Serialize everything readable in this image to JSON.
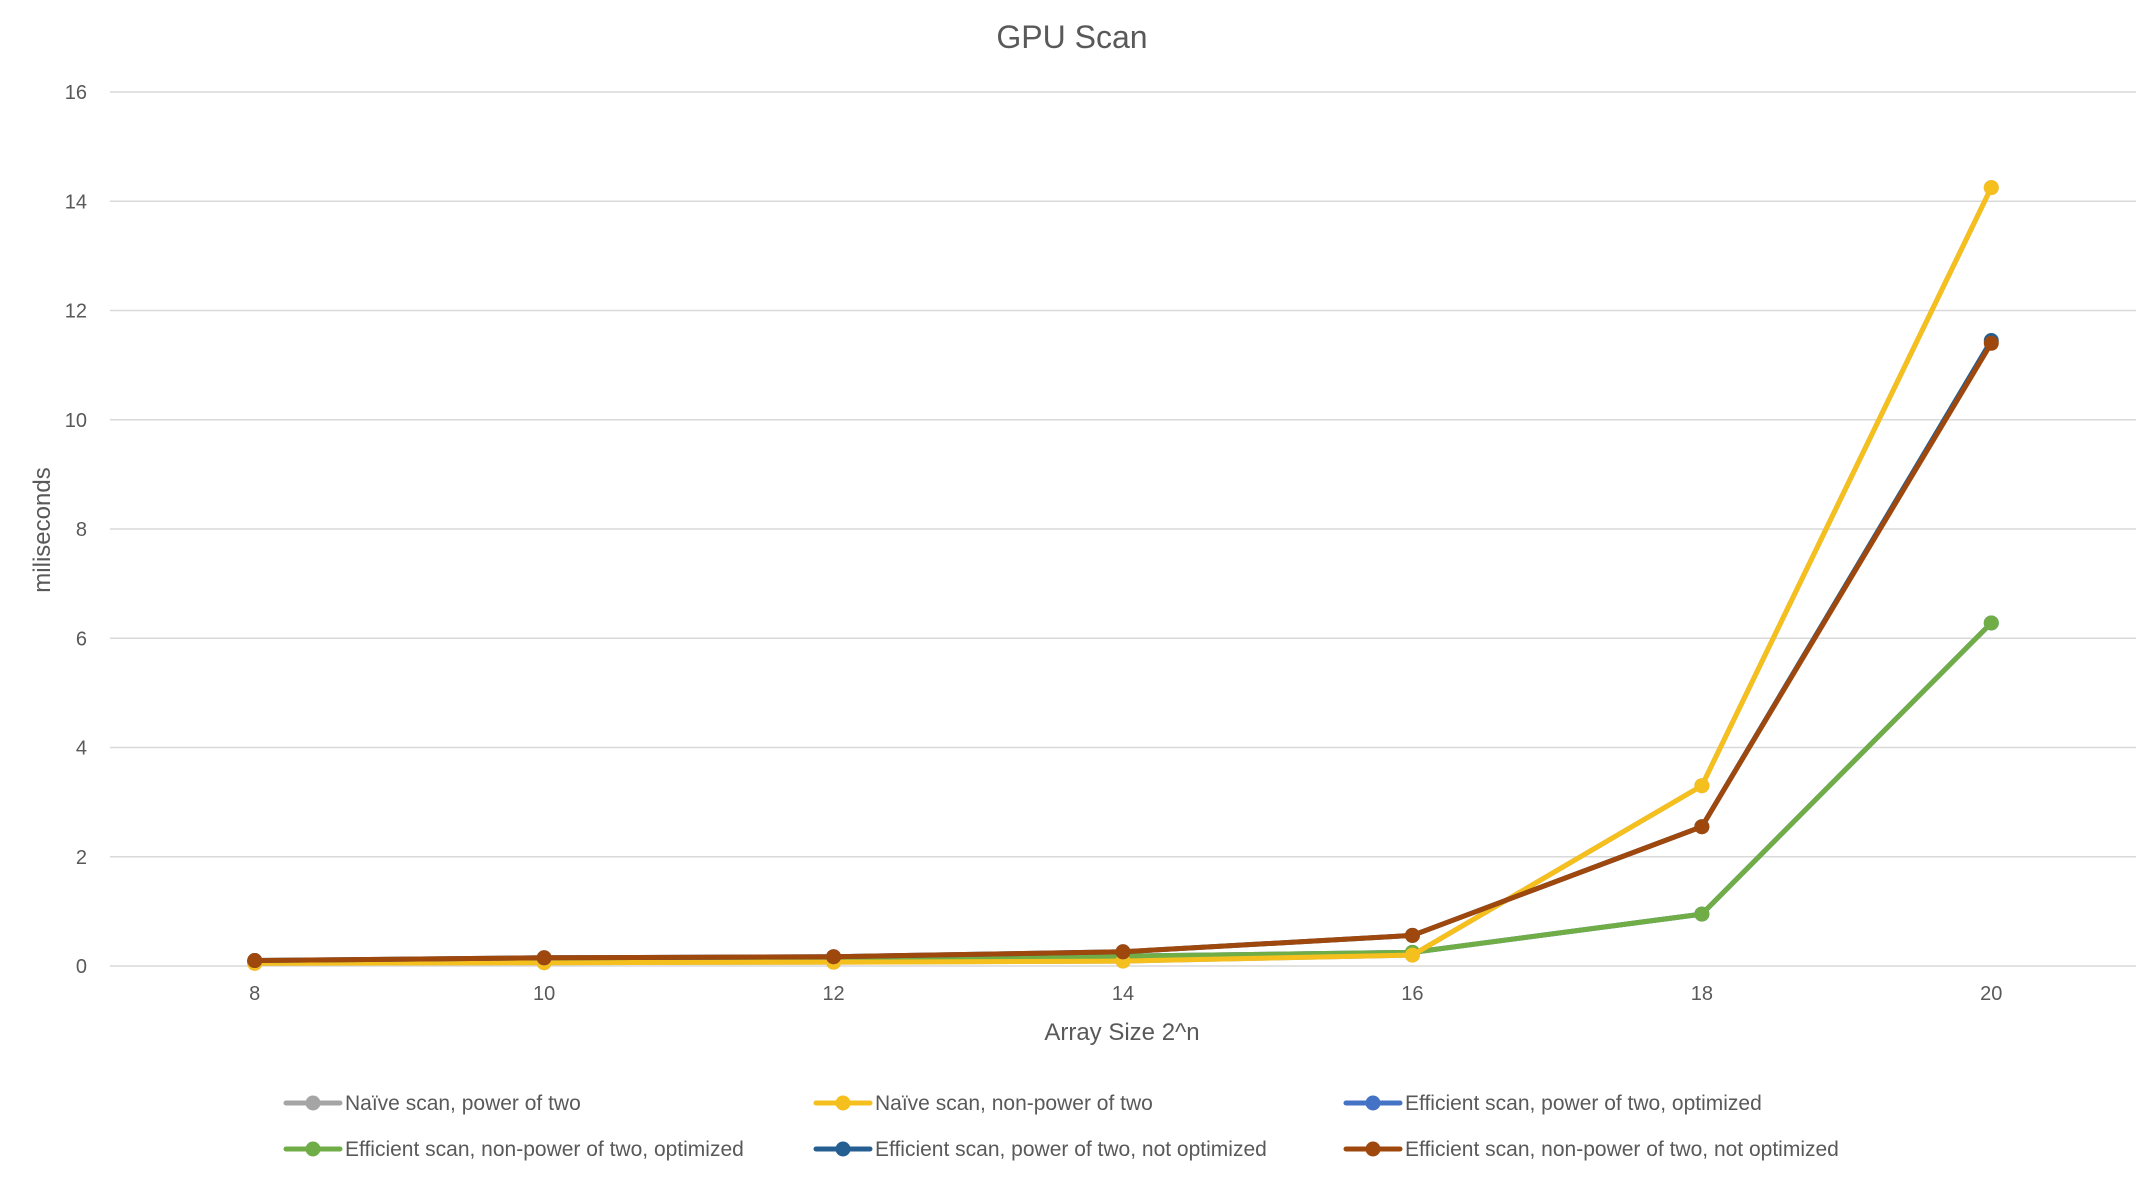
{
  "chart_data": {
    "type": "line",
    "title": "GPU Scan",
    "xlabel": "Array Size 2^n",
    "ylabel": "miliseconds",
    "x": [
      8,
      10,
      12,
      14,
      16,
      18,
      20
    ],
    "xlim": [
      7,
      21
    ],
    "ylim": [
      0,
      16
    ],
    "yticks": [
      0,
      2,
      4,
      6,
      8,
      10,
      12,
      14,
      16
    ],
    "grid": true,
    "legend_position": "bottom",
    "series": [
      {
        "name": "Naïve scan, power of two",
        "color": "#a5a5a5",
        "values": [
          0.05,
          0.06,
          0.07,
          0.09,
          0.2,
          3.3,
          14.25
        ]
      },
      {
        "name": "Naïve scan, non-power of two",
        "color": "#f5c01e",
        "values": [
          0.05,
          0.06,
          0.07,
          0.09,
          0.2,
          3.3,
          14.25
        ]
      },
      {
        "name": "Efficient scan, power of two, optimized",
        "color": "#4472c4",
        "values": [
          0.08,
          0.1,
          0.12,
          0.18,
          0.25,
          0.95,
          6.28
        ]
      },
      {
        "name": "Efficient scan, non-power of two, optimized",
        "color": "#70ad47",
        "values": [
          0.08,
          0.1,
          0.12,
          0.18,
          0.25,
          0.95,
          6.28
        ]
      },
      {
        "name": "Efficient scan, power of two, not optimized",
        "color": "#255e91",
        "values": [
          0.1,
          0.15,
          0.17,
          0.26,
          0.56,
          2.55,
          11.45
        ]
      },
      {
        "name": "Efficient scan, non-power of two, not optimized",
        "color": "#9e480e",
        "values": [
          0.1,
          0.15,
          0.17,
          0.26,
          0.56,
          2.55,
          11.4
        ]
      }
    ]
  }
}
